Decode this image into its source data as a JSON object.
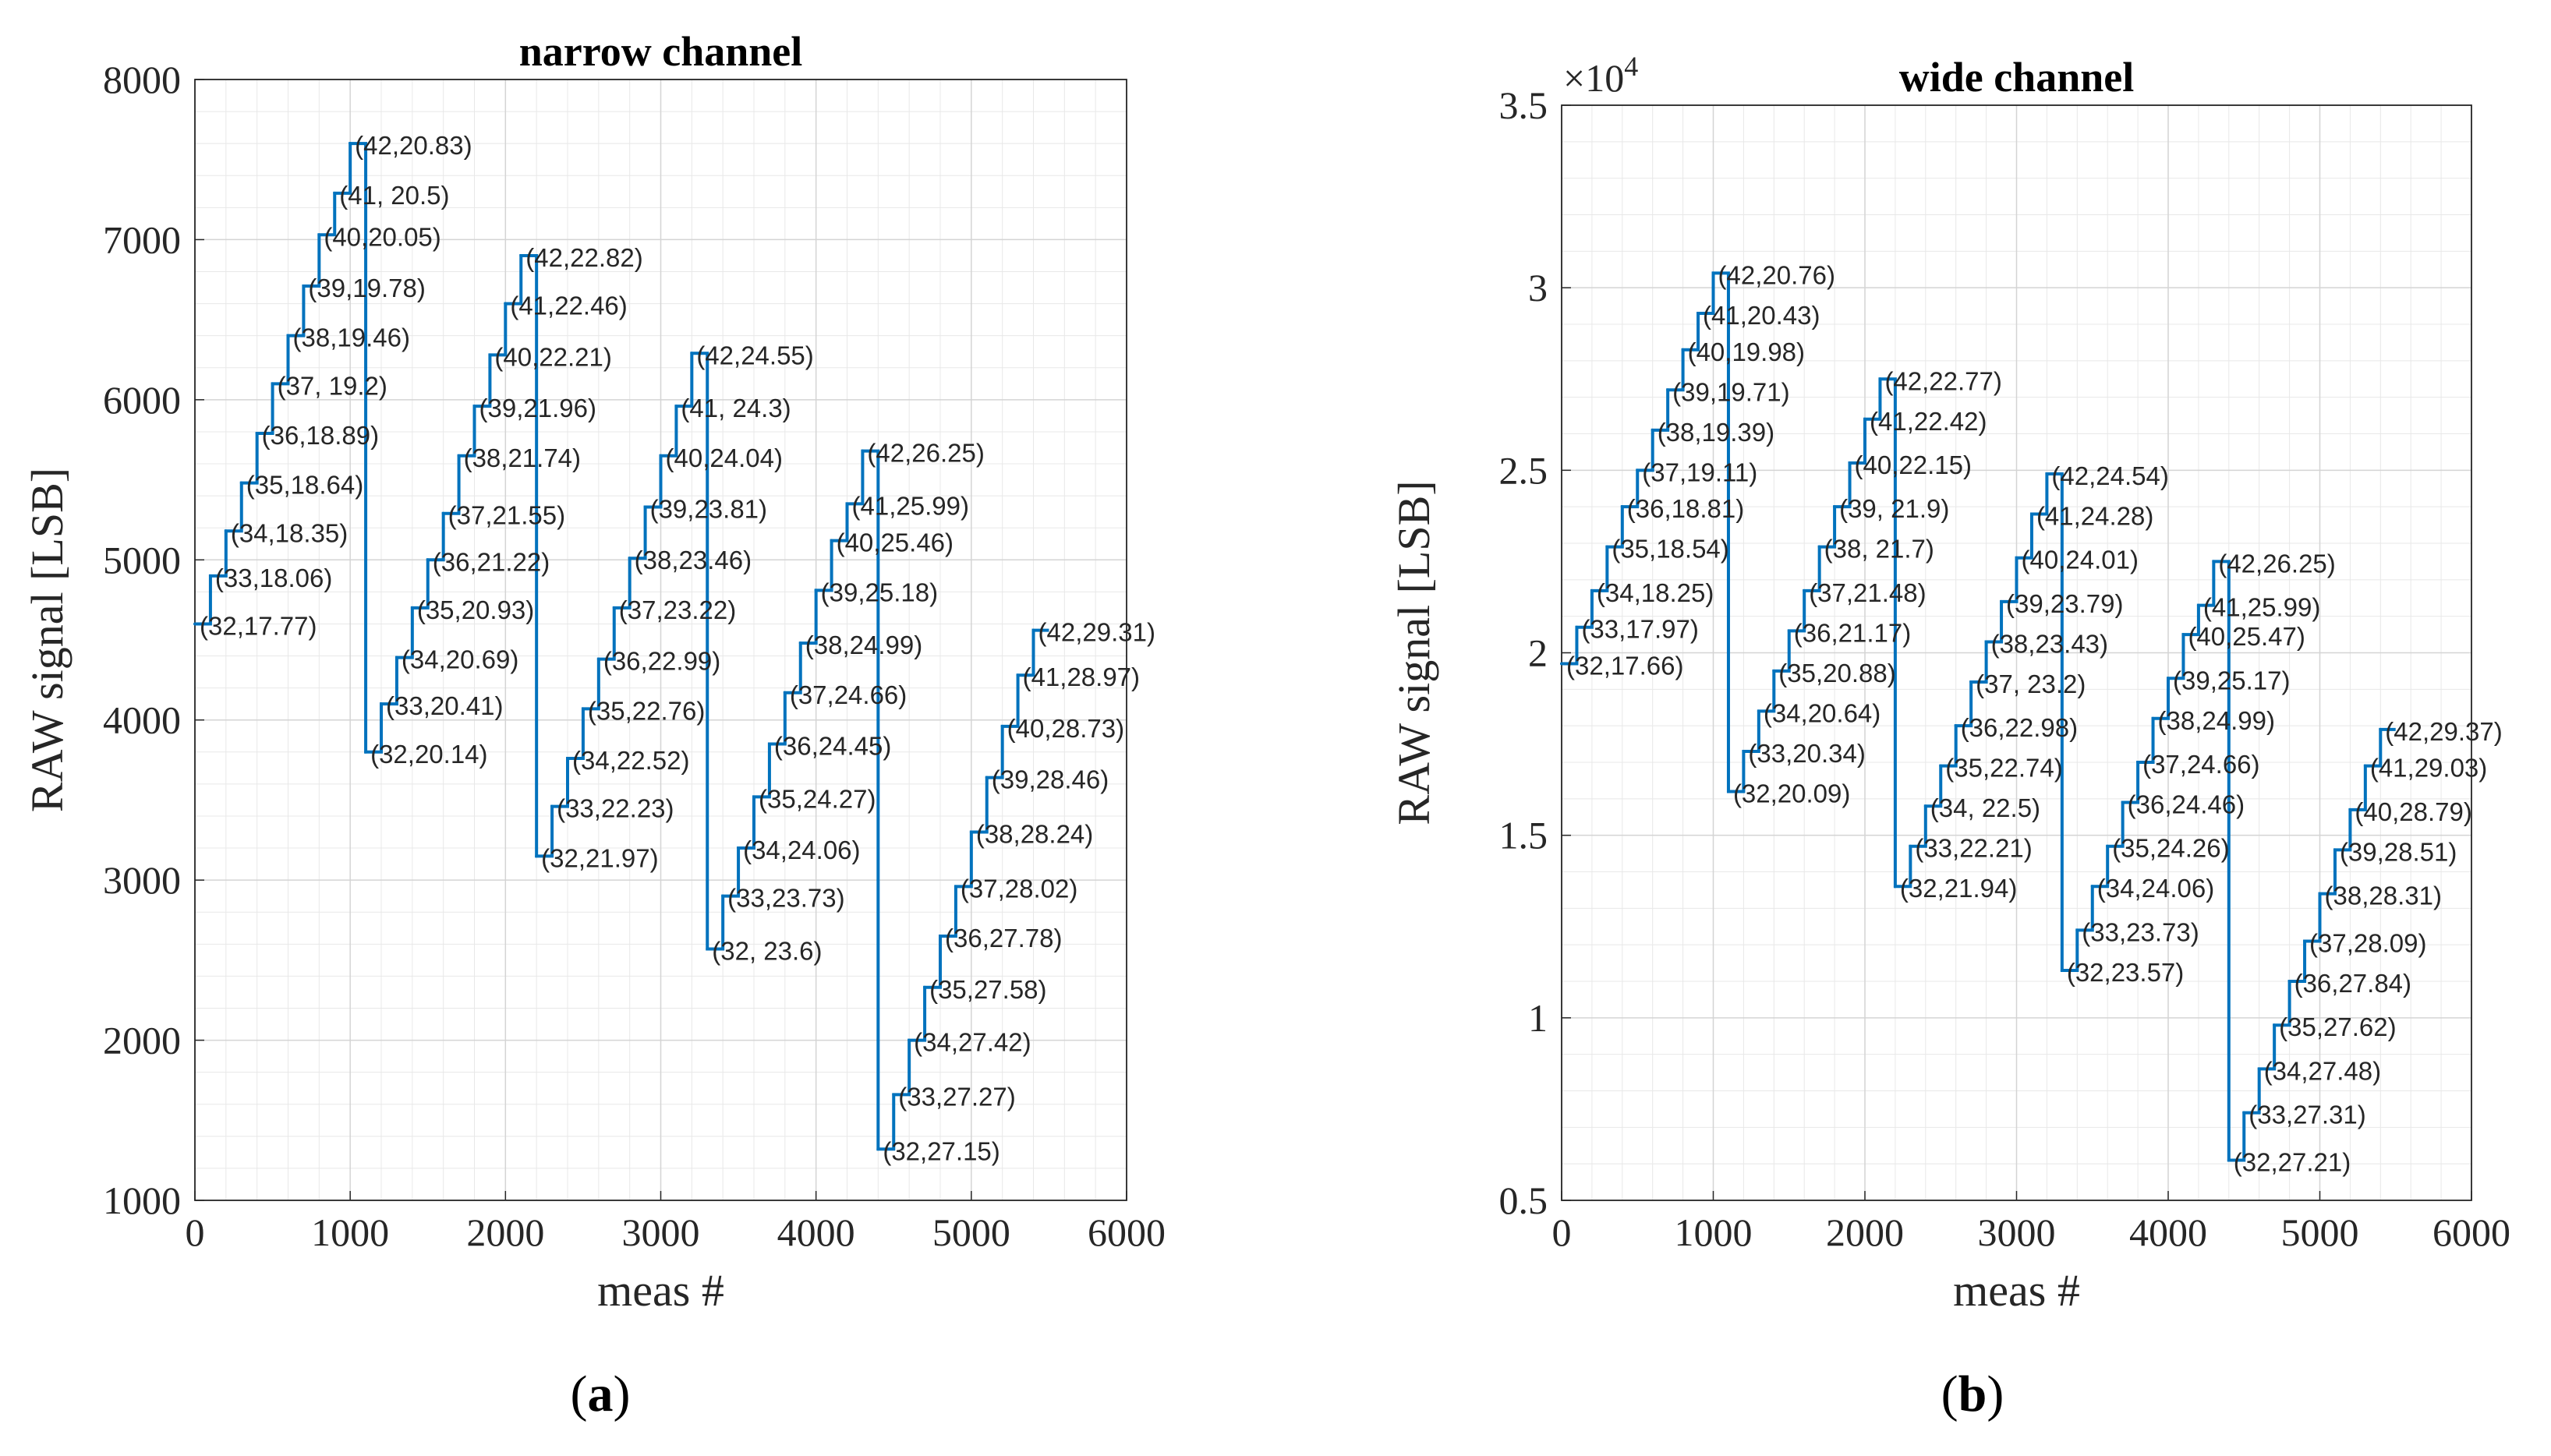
{
  "chart_data": [
    {
      "type": "line",
      "panel_label": "a",
      "title": "narrow channel",
      "xlabel": "meas #",
      "ylabel": "RAW signal [LSB]",
      "xlim": [
        0,
        6000
      ],
      "ylim": [
        1000,
        8000
      ],
      "xticks": [
        "0",
        "1000",
        "2000",
        "3000",
        "4000",
        "5000",
        "6000"
      ],
      "yticks": [
        "1000",
        "2000",
        "3000",
        "4000",
        "5000",
        "6000",
        "7000",
        "8000"
      ],
      "multiplier": "",
      "grid": true,
      "color": "#0072BD",
      "step_x": 100,
      "groups": [
        {
          "x_start": 0,
          "values": [
            4600,
            4900,
            5180,
            5480,
            5790,
            6100,
            6400,
            6710,
            7030,
            7290,
            7600
          ],
          "labels": [
            "(32,17.77)",
            "(33,18.06)",
            "(34,18.35)",
            "(35,18.64)",
            "(36,18.89)",
            "(37, 19.2)",
            "(38,19.46)",
            "(39,19.78)",
            "(40,20.05)",
            "(41, 20.5)",
            "(42,20.83)"
          ]
        },
        {
          "x_start": 1100,
          "values": [
            3800,
            4100,
            4390,
            4700,
            5000,
            5290,
            5650,
            5960,
            6280,
            6600,
            6900
          ],
          "labels": [
            "(32,20.14)",
            "(33,20.41)",
            "(34,20.69)",
            "(35,20.93)",
            "(36,21.22)",
            "(37,21.55)",
            "(38,21.74)",
            "(39,21.96)",
            "(40,22.21)",
            "(41,22.46)",
            "(42,22.82)"
          ]
        },
        {
          "x_start": 2200,
          "values": [
            3150,
            3460,
            3760,
            4070,
            4380,
            4700,
            5010,
            5330,
            5650,
            5960,
            6290
          ],
          "labels": [
            "(32,21.97)",
            "(33,22.23)",
            "(34,22.52)",
            "(35,22.76)",
            "(36,22.99)",
            "(37,23.22)",
            "(38,23.46)",
            "(39,23.81)",
            "(40,24.04)",
            "(41, 24.3)",
            "(42,24.55)"
          ]
        },
        {
          "x_start": 3300,
          "values": [
            2570,
            2900,
            3200,
            3520,
            3850,
            4170,
            4480,
            4810,
            5120,
            5350,
            5680
          ],
          "labels": [
            "(32, 23.6)",
            "(33,23.73)",
            "(34,24.06)",
            "(35,24.27)",
            "(36,24.45)",
            "(37,24.66)",
            "(38,24.99)",
            "(39,25.18)",
            "(40,25.46)",
            "(41,25.99)",
            "(42,26.25)"
          ]
        },
        {
          "x_start": 4400,
          "values": [
            1320,
            1660,
            2000,
            2330,
            2650,
            2960,
            3300,
            3640,
            3960,
            4280,
            4560
          ],
          "labels": [
            "(32,27.15)",
            "(33,27.27)",
            "(34,27.42)",
            "(35,27.58)",
            "(36,27.78)",
            "(37,28.02)",
            "(38,28.24)",
            "(39,28.46)",
            "(40,28.73)",
            "(41,28.97)",
            "(42,29.31)"
          ]
        }
      ]
    },
    {
      "type": "line",
      "panel_label": "b",
      "title": "wide channel",
      "xlabel": "meas #",
      "ylabel": "RAW signal [LSB]",
      "xlim": [
        0,
        6000
      ],
      "ylim": [
        0.5,
        3.5
      ],
      "xticks": [
        "0",
        "1000",
        "2000",
        "3000",
        "4000",
        "5000",
        "6000"
      ],
      "yticks": [
        "0.5",
        "1",
        "1.5",
        "2",
        "2.5",
        "3",
        "3.5"
      ],
      "multiplier": "×10",
      "multiplier_exp": "4",
      "grid": true,
      "color": "#0072BD",
      "step_x": 100,
      "groups": [
        {
          "x_start": 0,
          "values": [
            1.97,
            2.07,
            2.17,
            2.29,
            2.4,
            2.5,
            2.61,
            2.72,
            2.83,
            2.93,
            3.04
          ],
          "labels": [
            "(32,17.66)",
            "(33,17.97)",
            "(34,18.25)",
            "(35,18.54)",
            "(36,18.81)",
            "(37,19.11)",
            "(38,19.39)",
            "(39,19.71)",
            "(40,19.98)",
            "(41,20.43)",
            "(42,20.76)"
          ]
        },
        {
          "x_start": 1100,
          "values": [
            1.62,
            1.73,
            1.84,
            1.95,
            2.06,
            2.17,
            2.29,
            2.4,
            2.52,
            2.64,
            2.75
          ],
          "labels": [
            "(32,20.09)",
            "(33,20.34)",
            "(34,20.64)",
            "(35,20.88)",
            "(36,21.17)",
            "(37,21.48)",
            "(38, 21.7)",
            "(39, 21.9)",
            "(40,22.15)",
            "(41,22.42)",
            "(42,22.77)"
          ]
        },
        {
          "x_start": 2200,
          "values": [
            1.36,
            1.47,
            1.58,
            1.69,
            1.8,
            1.92,
            2.03,
            2.14,
            2.26,
            2.38,
            2.49
          ],
          "labels": [
            "(32,21.94)",
            "(33,22.21)",
            "(34, 22.5)",
            "(35,22.74)",
            "(36,22.98)",
            "(37, 23.2)",
            "(38,23.43)",
            "(39,23.79)",
            "(40,24.01)",
            "(41,24.28)",
            "(42,24.54)"
          ]
        },
        {
          "x_start": 3300,
          "values": [
            1.13,
            1.24,
            1.36,
            1.47,
            1.59,
            1.7,
            1.82,
            1.93,
            2.05,
            2.13,
            2.25
          ],
          "labels": [
            "(32,23.57)",
            "(33,23.73)",
            "(34,24.06)",
            "(35,24.26)",
            "(36,24.46)",
            "(37,24.66)",
            "(38,24.99)",
            "(39,25.17)",
            "(40,25.47)",
            "(41,25.99)",
            "(42,26.25)"
          ]
        },
        {
          "x_start": 4400,
          "values": [
            0.61,
            0.74,
            0.86,
            0.98,
            1.1,
            1.21,
            1.34,
            1.46,
            1.57,
            1.69,
            1.79
          ],
          "labels": [
            "(32,27.21)",
            "(33,27.31)",
            "(34,27.48)",
            "(35,27.62)",
            "(36,27.84)",
            "(37,28.09)",
            "(38,28.31)",
            "(39,28.51)",
            "(40,28.79)",
            "(41,29.03)",
            "(42,29.37)"
          ]
        }
      ]
    }
  ]
}
